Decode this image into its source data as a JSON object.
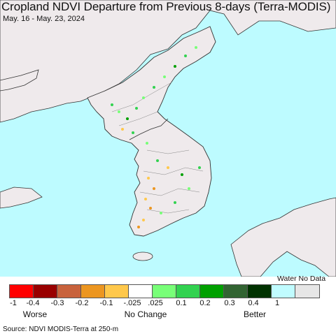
{
  "title": "Cropland NDVI Departure from Previous 8-days (Terra-MODIS)",
  "subtitle": "May. 16 - May. 23, 2024",
  "colors": {
    "water": "#bdfbff",
    "land": "#efeaec",
    "border": "#333333",
    "province_line": "#888888"
  },
  "legend": {
    "water_label": "Water No Data",
    "swatches": [
      {
        "color": "#ff0000",
        "meaning": "-1 to -0.4"
      },
      {
        "color": "#990000",
        "meaning": "-0.4 to -0.3"
      },
      {
        "color": "#c8623c",
        "meaning": "-0.3 to -0.2"
      },
      {
        "color": "#ec9620",
        "meaning": "-0.2 to -0.1"
      },
      {
        "color": "#ffc84b",
        "meaning": "-0.1 to -0.025"
      },
      {
        "color": "#ffffff",
        "meaning": "-0.025 to 0.025"
      },
      {
        "color": "#78ff78",
        "meaning": "0.025 to 0.1"
      },
      {
        "color": "#32d250",
        "meaning": "0.1 to 0.2"
      },
      {
        "color": "#00a000",
        "meaning": "0.2 to 0.3"
      },
      {
        "color": "#326432",
        "meaning": "0.3 to 0.4"
      },
      {
        "color": "#003200",
        "meaning": "0.4 to 1"
      },
      {
        "color": "#c0fcff",
        "meaning": "Water"
      },
      {
        "color": "#e6e6e6",
        "meaning": "No Data"
      }
    ],
    "ticks": [
      "-1",
      "-0.4",
      "-0.3",
      "-0.2",
      "-0.1",
      "-.025",
      ".025",
      "0.1",
      "0.2",
      "0.3",
      "0.4",
      "1"
    ],
    "categories": [
      "Worse",
      "No Change",
      "Better"
    ]
  },
  "source": "Source: NDVI MODIS-Terra at 250-m"
}
